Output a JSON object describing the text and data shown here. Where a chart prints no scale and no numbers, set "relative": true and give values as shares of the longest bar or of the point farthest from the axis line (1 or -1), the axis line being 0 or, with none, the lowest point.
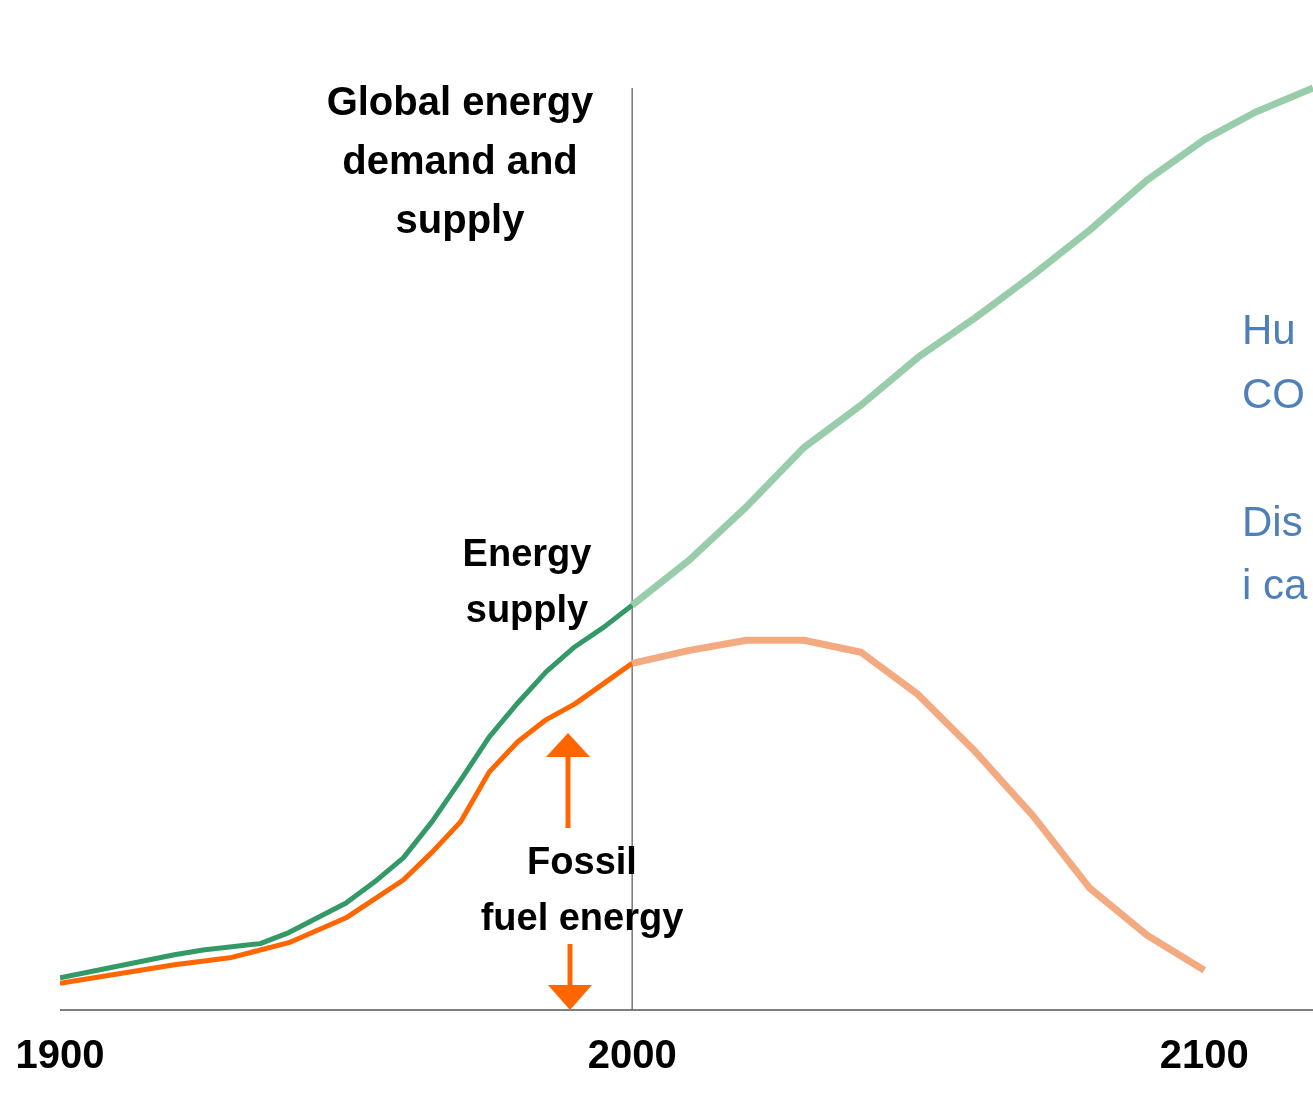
{
  "chart_data": {
    "type": "line",
    "title": "Global energy demand and supply",
    "relative": true,
    "xlim": [
      1900,
      2119
    ],
    "xticks": [
      1900,
      2000,
      2100
    ],
    "series": [
      {
        "color": "#339966",
        "x": [
          1900,
          1920,
          1925,
          1935,
          1940,
          1945,
          1950,
          1955,
          1960,
          1965,
          1970,
          1975,
          1980,
          1985,
          1990,
          1995,
          2000
        ],
        "values": [
          0.035,
          0.06,
          0.065,
          0.072,
          0.084,
          0.1,
          0.116,
          0.139,
          0.165,
          0.204,
          0.249,
          0.296,
          0.333,
          0.367,
          0.394,
          0.415,
          0.439
        ]
      },
      {
        "color": "#99ccaa",
        "x": [
          2000,
          2010,
          2020,
          2030,
          2040,
          2050,
          2060,
          2070,
          2080,
          2090,
          2100,
          2109,
          2119
        ],
        "values": [
          0.439,
          0.488,
          0.546,
          0.61,
          0.656,
          0.708,
          0.751,
          0.797,
          0.846,
          0.9,
          0.944,
          0.974,
          1
        ]
      },
      {
        "color": "#ff6600",
        "x": [
          1900,
          1920,
          1930,
          1940,
          1950,
          1960,
          1965,
          1970,
          1975,
          1980,
          1985,
          1990,
          1995,
          2000
        ],
        "values": [
          0.029,
          0.049,
          0.057,
          0.073,
          0.1,
          0.141,
          0.171,
          0.204,
          0.258,
          0.291,
          0.315,
          0.332,
          0.354,
          0.376
        ]
      },
      {
        "color": "#f4aa80",
        "x": [
          2000,
          2010,
          2020,
          2030,
          2040,
          2050,
          2060,
          2070,
          2080,
          2090,
          2100
        ],
        "values": [
          0.376,
          0.39,
          0.401,
          0.401,
          0.388,
          0.342,
          0.28,
          0.211,
          0.132,
          0.081,
          0.043
        ]
      }
    ],
    "ref_lines": [
      {
        "axis": "x",
        "value": 2000,
        "color": "#555555"
      }
    ],
    "annotations": [
      "Energy supply",
      "Fossil fuel energy",
      "Hu",
      "CO",
      "Dis",
      "i ca"
    ]
  }
}
